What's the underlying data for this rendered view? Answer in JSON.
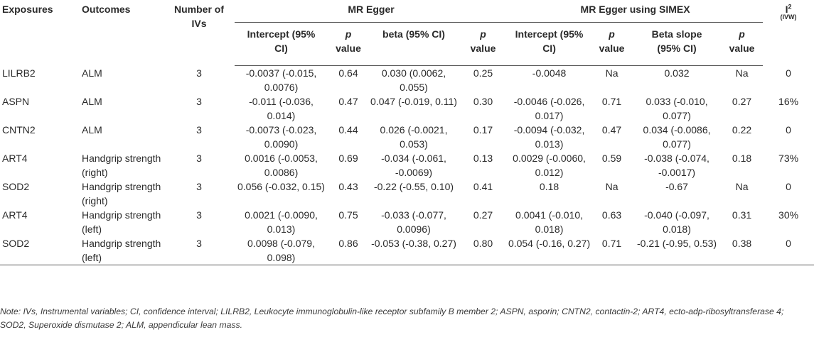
{
  "headers": {
    "exposures": "Exposures",
    "outcomes": "Outcomes",
    "number_of_ivs": "Number of IVs",
    "mr_egger": "MR Egger",
    "mr_egger_simex": "MR Egger using SIMEX",
    "i2": "I",
    "i2_sup": "2",
    "i2_sub": "(IVW)",
    "egger_intercept": "Intercept (95% CI)",
    "egger_p1_italic": "p",
    "egger_p1_rest": "value",
    "egger_beta": "beta (95% CI)",
    "egger_p2_italic": "p",
    "egger_p2_rest": "value",
    "simex_intercept": "Intercept (95% CI)",
    "simex_p1_italic": "p",
    "simex_p1_rest": "value",
    "simex_beta": "Beta slope (95% CI)",
    "simex_p2_italic": "p",
    "simex_p2_rest": "value"
  },
  "rows": [
    {
      "exposure": "LILRB2",
      "outcome": "ALM",
      "ivs": "3",
      "e_int": "-0.0037 (-0.015, 0.0076)",
      "e_p1": "0.64",
      "e_beta": "0.030 (0.0062, 0.055)",
      "e_p2": "0.25",
      "s_int": "-0.0048",
      "s_p1": "Na",
      "s_beta": "0.032",
      "s_p2": "Na",
      "i2": "0"
    },
    {
      "exposure": "ASPN",
      "outcome": "ALM",
      "ivs": "3",
      "e_int": "-0.011 (-0.036, 0.014)",
      "e_p1": "0.47",
      "e_beta": "0.047 (-0.019, 0.11)",
      "e_p2": "0.30",
      "s_int": "-0.0046 (-0.026, 0.017)",
      "s_p1": "0.71",
      "s_beta": "0.033 (-0.010, 0.077)",
      "s_p2": "0.27",
      "i2": "16%"
    },
    {
      "exposure": "CNTN2",
      "outcome": "ALM",
      "ivs": "3",
      "e_int": "-0.0073 (-0.023, 0.0090)",
      "e_p1": "0.44",
      "e_beta": "0.026 (-0.0021, 0.053)",
      "e_p2": "0.17",
      "s_int": "-0.0094 (-0.032, 0.013)",
      "s_p1": "0.47",
      "s_beta": "0.034 (-0.0086, 0.077)",
      "s_p2": "0.22",
      "i2": "0"
    },
    {
      "exposure": "ART4",
      "outcome": "Handgrip strength (right)",
      "ivs": "3",
      "e_int": "0.0016 (-0.0053, 0.0086)",
      "e_p1": "0.69",
      "e_beta": "-0.034 (-0.061, -0.0069)",
      "e_p2": "0.13",
      "s_int": "0.0029 (-0.0060, 0.012)",
      "s_p1": "0.59",
      "s_beta": "-0.038 (-0.074, -0.0017)",
      "s_p2": "0.18",
      "i2": "73%"
    },
    {
      "exposure": "SOD2",
      "outcome": "Handgrip strength (right)",
      "ivs": "3",
      "e_int": "0.056 (-0.032, 0.15)",
      "e_p1": "0.43",
      "e_beta": "-0.22 (-0.55, 0.10)",
      "e_p2": "0.41",
      "s_int": "0.18",
      "s_p1": "Na",
      "s_beta": "-0.67",
      "s_p2": "Na",
      "i2": "0"
    },
    {
      "exposure": "ART4",
      "outcome": "Handgrip strength (left)",
      "ivs": "3",
      "e_int": "0.0021 (-0.0090, 0.013)",
      "e_p1": "0.75",
      "e_beta": "-0.033 (-0.077, 0.0096)",
      "e_p2": "0.27",
      "s_int": "0.0041 (-0.010, 0.018)",
      "s_p1": "0.63",
      "s_beta": "-0.040 (-0.097, 0.018)",
      "s_p2": "0.31",
      "i2": "30%"
    },
    {
      "exposure": "SOD2",
      "outcome": "Handgrip strength (left)",
      "ivs": "3",
      "e_int": "0.0098 (-0.079, 0.098)",
      "e_p1": "0.86",
      "e_beta": "-0.053 (-0.38, 0.27)",
      "e_p2": "0.80",
      "s_int": "0.054 (-0.16, 0.27)",
      "s_p1": "0.71",
      "s_beta": "-0.21 (-0.95, 0.53)",
      "s_p2": "0.38",
      "i2": "0"
    }
  ],
  "note": "Note: IVs, Instrumental variables; CI, confidence interval; LILRB2, Leukocyte immunoglobulin-like receptor subfamily B member 2; ASPN, asporin; CNTN2, contactin-2; ART4, ecto-adp-ribosyltransferase 4; SOD2, Superoxide dismutase 2; ALM, appendicular lean mass."
}
